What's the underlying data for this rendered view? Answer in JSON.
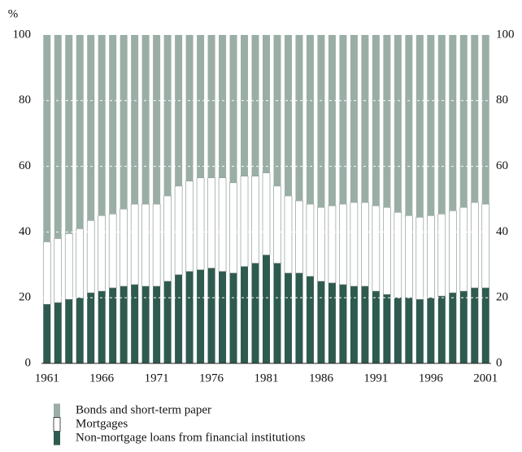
{
  "chart_data": {
    "type": "stacked-bar",
    "unit": "%",
    "categories": [
      "1961",
      null,
      null,
      null,
      null,
      "1966",
      null,
      null,
      null,
      null,
      "1971",
      null,
      null,
      null,
      null,
      "1976",
      null,
      null,
      null,
      null,
      "1981",
      null,
      null,
      null,
      null,
      "1986",
      null,
      null,
      null,
      null,
      "1991",
      null,
      null,
      null,
      null,
      "1996",
      null,
      null,
      null,
      null,
      "2001"
    ],
    "series": [
      {
        "name": "Non-mortgage loans from financial institutions",
        "color": "#2f5a4f",
        "values": [
          18,
          18.5,
          19.5,
          20,
          21.5,
          22,
          23,
          23.5,
          24,
          23.5,
          23.5,
          25,
          27,
          28,
          28.5,
          29,
          28,
          27.5,
          29.5,
          30.5,
          33,
          30.5,
          27.5,
          27.5,
          26.5,
          25,
          24.5,
          24,
          23.5,
          23.5,
          22,
          21,
          20,
          20,
          19.5,
          20,
          20.5,
          21.5,
          22,
          23,
          23
        ]
      },
      {
        "name": "Mortgages",
        "color": "#ffffff",
        "values": [
          19,
          19.5,
          20,
          21,
          22,
          23,
          22.5,
          23.5,
          24.5,
          25,
          25,
          26,
          27,
          27.5,
          28,
          27.5,
          28.5,
          27.5,
          27.5,
          26.5,
          25,
          23.5,
          23.5,
          22,
          22,
          22.5,
          23.5,
          24.5,
          25.5,
          25.5,
          26,
          26.5,
          26,
          25,
          25,
          25,
          25,
          25,
          25.5,
          26,
          25.5
        ]
      },
      {
        "name": "Bonds and short-term paper",
        "color": "#9aaea5",
        "values": [
          63,
          62,
          60.5,
          59,
          56.5,
          55,
          54.5,
          53,
          51.5,
          51.5,
          51.5,
          49,
          46,
          44.5,
          43.5,
          43.5,
          43.5,
          45,
          43,
          43,
          42,
          46,
          49,
          50.5,
          51.5,
          52.5,
          52,
          51.5,
          51,
          51,
          52,
          52.5,
          54,
          55,
          55.5,
          55,
          54.5,
          53.5,
          52.5,
          51,
          51.5
        ]
      }
    ],
    "ylim": [
      0,
      100
    ],
    "yticks": [
      0,
      20,
      40,
      60,
      80,
      100
    ],
    "grid": true
  }
}
